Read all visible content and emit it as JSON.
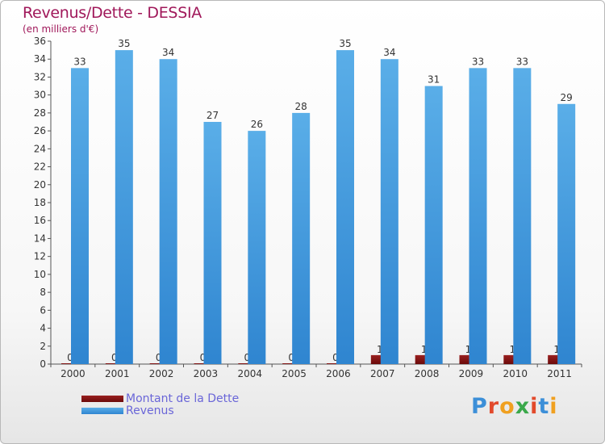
{
  "title": "Revenus/Dette - DESSIA",
  "subtitle": "(en milliers d'€)",
  "colors": {
    "title": "#a0185a",
    "axis": "#555555",
    "debt": "#6b0a0a",
    "debt_light": "#9a2020",
    "revenue": "#2f85d0",
    "revenue_light": "#5aaee8",
    "legend_text": "#6a66d8"
  },
  "logo": {
    "letters": [
      "P",
      "r",
      "o",
      "x",
      "i",
      "t",
      "i"
    ],
    "colors": [
      "#3c8fd8",
      "#e24a2c",
      "#f0a020",
      "#3aa84a",
      "#e24a2c",
      "#3c8fd8",
      "#f0a020"
    ]
  },
  "chart_data": {
    "type": "bar",
    "categories": [
      "2000",
      "2001",
      "2002",
      "2003",
      "2004",
      "2005",
      "2006",
      "2007",
      "2008",
      "2009",
      "2010",
      "2011"
    ],
    "series": [
      {
        "name": "Montant de la Dette",
        "values": [
          0,
          0,
          0,
          0,
          0,
          0,
          0,
          1,
          1,
          1,
          1,
          1
        ]
      },
      {
        "name": "Revenus",
        "values": [
          33,
          35,
          34,
          27,
          26,
          28,
          35,
          34,
          31,
          33,
          33,
          29
        ]
      }
    ],
    "ylim": [
      0,
      36
    ],
    "yticks": [
      0,
      2,
      4,
      6,
      8,
      10,
      12,
      14,
      16,
      18,
      20,
      22,
      24,
      26,
      28,
      30,
      32,
      34,
      36
    ],
    "xlabel": "",
    "ylabel": "",
    "grid": false,
    "legend_position": "bottom-left",
    "data_labels": true
  }
}
